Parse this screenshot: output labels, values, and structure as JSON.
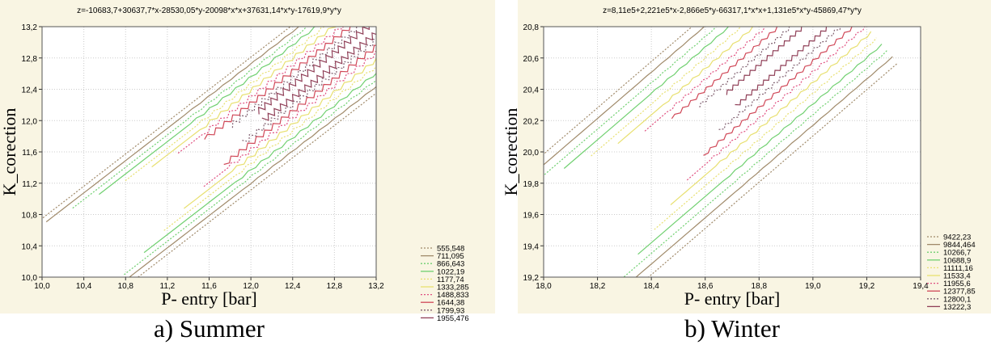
{
  "chart_data": [
    {
      "type": "contour",
      "title": "z=-10683,7+30637,7*x-28530,05*y-20098*x*x+37631,14*x*y-17619,9*y*y",
      "xlabel": "P- entry [bar]",
      "ylabel": "K_corection",
      "caption": "a) Summer",
      "xlim": [
        10,
        13.2
      ],
      "ylim": [
        10,
        13.2
      ],
      "xticks": [
        {
          "value": 10,
          "label": "10,0"
        },
        {
          "value": 10.4,
          "label": "10,4"
        },
        {
          "value": 10.8,
          "label": "10,8"
        },
        {
          "value": 11.2,
          "label": "11,2"
        },
        {
          "value": 11.6,
          "label": "11,6"
        },
        {
          "value": 12,
          "label": "12,0"
        },
        {
          "value": 12.4,
          "label": "12,4"
        },
        {
          "value": 12.8,
          "label": "12,8"
        },
        {
          "value": 13.2,
          "label": "13,2"
        }
      ],
      "yticks": [
        {
          "value": 10,
          "label": "10,0"
        },
        {
          "value": 10.4,
          "label": "10,4"
        },
        {
          "value": 10.8,
          "label": "10,8"
        },
        {
          "value": 11.2,
          "label": "11,2"
        },
        {
          "value": 11.6,
          "label": "11,6"
        },
        {
          "value": 12,
          "label": "12,0"
        },
        {
          "value": 12.4,
          "label": "12,4"
        },
        {
          "value": 12.8,
          "label": "12,8"
        },
        {
          "value": 13.2,
          "label": "13,2"
        }
      ],
      "grid": true,
      "series": [
        {
          "name": "555,548",
          "color": "#a08a6a",
          "style": "dotted"
        },
        {
          "name": "711,095",
          "color": "#a08a6a",
          "style": "solid"
        },
        {
          "name": "866,643",
          "color": "#70d070",
          "style": "dotted"
        },
        {
          "name": "1022,19",
          "color": "#70d070",
          "style": "solid"
        },
        {
          "name": "1177,74",
          "color": "#e8e070",
          "style": "dotted"
        },
        {
          "name": "1333,285",
          "color": "#e8e070",
          "style": "solid"
        },
        {
          "name": "1488,833",
          "color": "#e05080",
          "style": "dotted"
        },
        {
          "name": "1644,38",
          "color": "#d04858",
          "style": "solid"
        },
        {
          "name": "1799,93",
          "color": "#806070",
          "style": "dotted"
        },
        {
          "name": "1955,476",
          "color": "#904058",
          "style": "solid"
        }
      ]
    },
    {
      "type": "contour",
      "title": "z=8,11e5+2,221e5*x-2,866e5*y-66317,1*x*x+1,131e5*x*y-45869,47*y*y",
      "xlabel": "P- entry [bar]",
      "ylabel": "K_corection",
      "caption": "b) Winter",
      "xlim": [
        18,
        19.4
      ],
      "ylim": [
        19.2,
        20.8
      ],
      "xticks": [
        {
          "value": 18,
          "label": "18,0"
        },
        {
          "value": 18.2,
          "label": "18,2"
        },
        {
          "value": 18.4,
          "label": "18,4"
        },
        {
          "value": 18.6,
          "label": "18,6"
        },
        {
          "value": 18.8,
          "label": "18,8"
        },
        {
          "value": 19,
          "label": "19,0"
        },
        {
          "value": 19.2,
          "label": "19,2"
        },
        {
          "value": 19.4,
          "label": "19,4"
        }
      ],
      "yticks": [
        {
          "value": 19.2,
          "label": "19,2"
        },
        {
          "value": 19.4,
          "label": "19,4"
        },
        {
          "value": 19.6,
          "label": "19,6"
        },
        {
          "value": 19.8,
          "label": "19,8"
        },
        {
          "value": 20,
          "label": "20,0"
        },
        {
          "value": 20.2,
          "label": "20,2"
        },
        {
          "value": 20.4,
          "label": "20,4"
        },
        {
          "value": 20.6,
          "label": "20,6"
        },
        {
          "value": 20.8,
          "label": "20,8"
        }
      ],
      "grid": true,
      "series": [
        {
          "name": "9422,23",
          "color": "#a08a6a",
          "style": "dotted"
        },
        {
          "name": "9844,464",
          "color": "#a08a6a",
          "style": "solid"
        },
        {
          "name": "10266,7",
          "color": "#70d070",
          "style": "dotted"
        },
        {
          "name": "10688,9",
          "color": "#70d070",
          "style": "solid"
        },
        {
          "name": "11111,16",
          "color": "#e8e070",
          "style": "dotted"
        },
        {
          "name": "11533,4",
          "color": "#e8e070",
          "style": "solid"
        },
        {
          "name": "11955,6",
          "color": "#e05080",
          "style": "dotted"
        },
        {
          "name": "12377,85",
          "color": "#d04858",
          "style": "solid"
        },
        {
          "name": "12800,1",
          "color": "#806070",
          "style": "dotted"
        },
        {
          "name": "13222,3",
          "color": "#904058",
          "style": "solid"
        }
      ]
    }
  ]
}
